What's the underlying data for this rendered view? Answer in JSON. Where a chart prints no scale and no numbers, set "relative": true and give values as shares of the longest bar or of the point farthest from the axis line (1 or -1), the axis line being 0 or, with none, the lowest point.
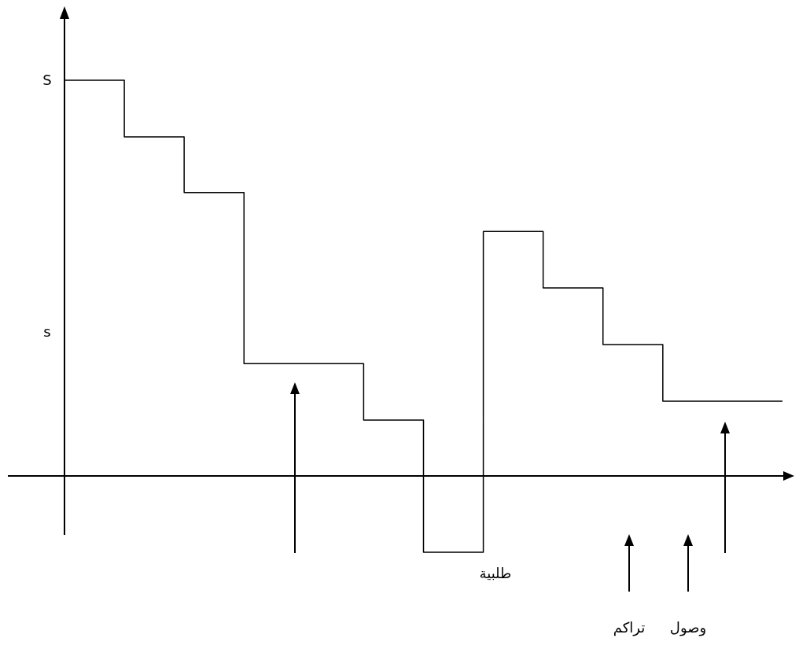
{
  "chart_data": {
    "type": "step",
    "color": "#000000",
    "categories": [
      null,
      null,
      null,
      null,
      null,
      null,
      null,
      null,
      null,
      null,
      null,
      null,
      null
    ],
    "values": [
      1,
      0.857,
      0.716,
      0.284,
      0.284,
      0.141,
      -0.193,
      0.618,
      0.475,
      0.332,
      0.189,
      0.189,
      0.189
    ],
    "relative": true,
    "annotations": [
      "S",
      "s",
      "طلبية",
      "تراكم",
      "وصول"
    ]
  }
}
